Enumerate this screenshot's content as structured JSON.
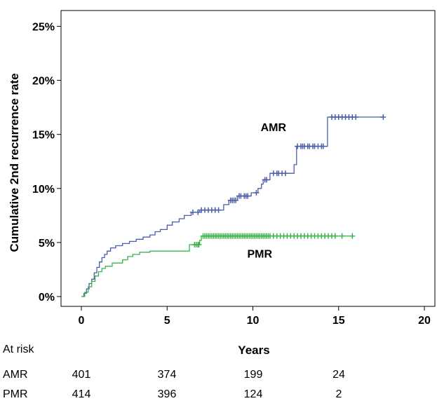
{
  "chart_data": {
    "type": "line",
    "subtype": "kaplan-meier-cumulative-incidence",
    "xlabel": "Years",
    "ylabel": "Cumulative 2nd recurrence rate",
    "xlim": [
      0,
      20
    ],
    "ylim": [
      0,
      25
    ],
    "x_ticks": [
      0,
      5,
      10,
      15,
      20
    ],
    "y_ticks": [
      0,
      5,
      10,
      15,
      20,
      25
    ],
    "y_tick_labels": [
      "0%",
      "5%",
      "10%",
      "15%",
      "20%",
      "25%"
    ],
    "grid": false,
    "series": [
      {
        "name": "AMR",
        "color": "#4a5ea8",
        "points": [
          [
            0,
            0
          ],
          [
            0.15,
            0
          ],
          [
            0.15,
            0.3
          ],
          [
            0.3,
            0.3
          ],
          [
            0.3,
            0.7
          ],
          [
            0.45,
            0.7
          ],
          [
            0.45,
            1.2
          ],
          [
            0.6,
            1.2
          ],
          [
            0.6,
            1.6
          ],
          [
            0.75,
            1.6
          ],
          [
            0.75,
            2.2
          ],
          [
            0.9,
            2.2
          ],
          [
            0.9,
            2.7
          ],
          [
            1.05,
            2.7
          ],
          [
            1.05,
            3.2
          ],
          [
            1.2,
            3.2
          ],
          [
            1.2,
            3.6
          ],
          [
            1.35,
            3.6
          ],
          [
            1.35,
            3.9
          ],
          [
            1.5,
            3.9
          ],
          [
            1.5,
            4.2
          ],
          [
            1.7,
            4.2
          ],
          [
            1.7,
            4.5
          ],
          [
            2.0,
            4.5
          ],
          [
            2.0,
            4.7
          ],
          [
            2.4,
            4.7
          ],
          [
            2.4,
            4.9
          ],
          [
            2.8,
            4.9
          ],
          [
            2.8,
            5.1
          ],
          [
            3.2,
            5.1
          ],
          [
            3.2,
            5.3
          ],
          [
            3.6,
            5.3
          ],
          [
            3.6,
            5.5
          ],
          [
            4.0,
            5.5
          ],
          [
            4.0,
            5.7
          ],
          [
            4.3,
            5.7
          ],
          [
            4.3,
            6.0
          ],
          [
            4.6,
            6.0
          ],
          [
            4.6,
            6.2
          ],
          [
            5.0,
            6.2
          ],
          [
            5.0,
            6.6
          ],
          [
            5.3,
            6.6
          ],
          [
            5.3,
            6.9
          ],
          [
            5.7,
            6.9
          ],
          [
            5.7,
            7.2
          ],
          [
            6.0,
            7.2
          ],
          [
            6.0,
            7.5
          ],
          [
            6.4,
            7.5
          ],
          [
            6.4,
            7.8
          ],
          [
            6.9,
            7.8
          ],
          [
            6.9,
            8.0
          ],
          [
            8.3,
            8.0
          ],
          [
            8.3,
            8.5
          ],
          [
            8.6,
            8.5
          ],
          [
            8.6,
            8.9
          ],
          [
            9.1,
            8.9
          ],
          [
            9.1,
            9.3
          ],
          [
            9.9,
            9.3
          ],
          [
            9.9,
            9.6
          ],
          [
            10.3,
            9.6
          ],
          [
            10.3,
            10.0
          ],
          [
            10.5,
            10.0
          ],
          [
            10.5,
            10.4
          ],
          [
            10.6,
            10.4
          ],
          [
            10.6,
            10.8
          ],
          [
            11.0,
            10.8
          ],
          [
            11.0,
            11.4
          ],
          [
            12.0,
            11.4
          ],
          [
            12.0,
            11.4
          ],
          [
            12.4,
            11.4
          ],
          [
            12.4,
            12.2
          ],
          [
            12.55,
            12.2
          ],
          [
            12.55,
            13.9
          ],
          [
            14.2,
            13.9
          ],
          [
            14.2,
            13.9
          ],
          [
            14.35,
            13.9
          ],
          [
            14.35,
            16.6
          ],
          [
            17.6,
            16.6
          ]
        ],
        "censor_x": [
          6.5,
          6.8,
          7.0,
          7.2,
          7.4,
          7.6,
          7.8,
          8.0,
          8.7,
          8.8,
          8.9,
          9.0,
          9.2,
          9.3,
          9.5,
          9.6,
          9.7,
          10.2,
          10.7,
          10.8,
          11.2,
          11.4,
          11.5,
          11.7,
          11.9,
          12.6,
          12.8,
          12.9,
          13.0,
          13.2,
          13.3,
          13.5,
          13.6,
          13.8,
          14.0,
          14.1,
          14.6,
          14.8,
          15.0,
          15.2,
          15.4,
          15.6,
          15.8,
          16.0,
          17.6
        ]
      },
      {
        "name": "PMR",
        "color": "#3cb44b",
        "points": [
          [
            0,
            0
          ],
          [
            0.2,
            0
          ],
          [
            0.2,
            0.4
          ],
          [
            0.4,
            0.4
          ],
          [
            0.4,
            0.9
          ],
          [
            0.6,
            0.9
          ],
          [
            0.6,
            1.4
          ],
          [
            0.8,
            1.4
          ],
          [
            0.8,
            1.9
          ],
          [
            1.0,
            1.9
          ],
          [
            1.0,
            2.3
          ],
          [
            1.2,
            2.3
          ],
          [
            1.2,
            2.6
          ],
          [
            1.4,
            2.6
          ],
          [
            1.4,
            2.8
          ],
          [
            1.8,
            2.8
          ],
          [
            1.8,
            3.1
          ],
          [
            2.4,
            3.1
          ],
          [
            2.4,
            3.4
          ],
          [
            2.7,
            3.4
          ],
          [
            2.7,
            3.7
          ],
          [
            3.0,
            3.7
          ],
          [
            3.0,
            3.9
          ],
          [
            3.4,
            3.9
          ],
          [
            3.4,
            4.1
          ],
          [
            4.0,
            4.1
          ],
          [
            4.0,
            4.2
          ],
          [
            6.3,
            4.2
          ],
          [
            6.3,
            4.8
          ],
          [
            6.9,
            4.8
          ],
          [
            6.9,
            5.2
          ],
          [
            7.0,
            5.2
          ],
          [
            7.0,
            5.6
          ],
          [
            15.8,
            5.6
          ]
        ],
        "censor_x": [
          6.6,
          6.7,
          6.8,
          6.85,
          7.1,
          7.2,
          7.3,
          7.4,
          7.5,
          7.6,
          7.7,
          7.8,
          7.9,
          8.0,
          8.1,
          8.2,
          8.3,
          8.4,
          8.5,
          8.6,
          8.7,
          8.8,
          8.9,
          9.0,
          9.1,
          9.2,
          9.3,
          9.4,
          9.5,
          9.6,
          9.7,
          9.8,
          9.9,
          10.0,
          10.1,
          10.2,
          10.3,
          10.4,
          10.5,
          10.6,
          10.7,
          10.8,
          10.9,
          11.0,
          11.2,
          11.4,
          11.6,
          11.8,
          12.0,
          12.2,
          12.4,
          12.6,
          12.8,
          13.0,
          13.2,
          13.4,
          13.6,
          13.8,
          14.0,
          14.2,
          14.4,
          14.6,
          14.8,
          15.2,
          15.8
        ]
      }
    ],
    "annotations": [
      {
        "text": "AMR",
        "x": 11.2,
        "y": 15.3
      },
      {
        "text": "PMR",
        "x": 10.4,
        "y": 3.6
      }
    ],
    "risk_table": {
      "title": "At risk",
      "columns_years": [
        0,
        5,
        10,
        15
      ],
      "rows": [
        {
          "label": "AMR",
          "values": [
            "401",
            "374",
            "199",
            "24"
          ]
        },
        {
          "label": "PMR",
          "values": [
            "414",
            "396",
            "124",
            "2"
          ]
        }
      ]
    }
  }
}
